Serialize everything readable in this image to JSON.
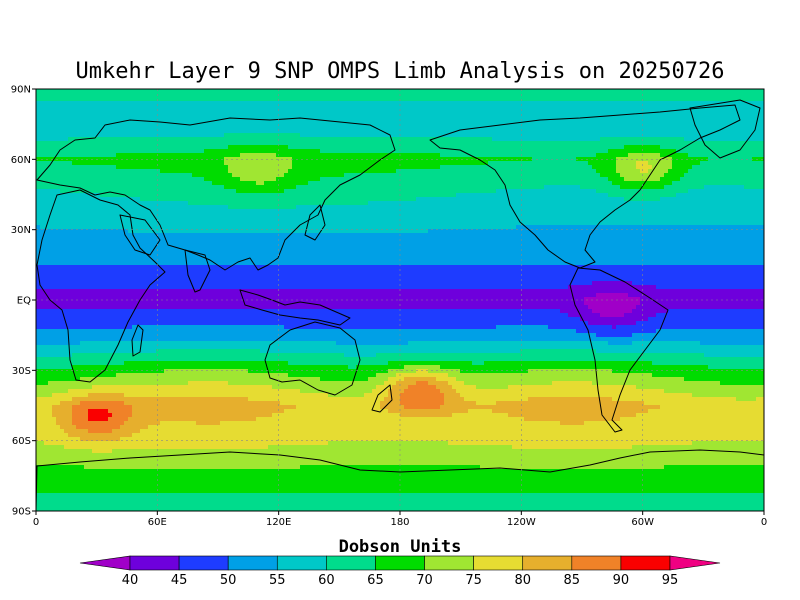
{
  "chart_data": {
    "type": "heatmap",
    "title": "Umkehr Layer 9 SNP OMPS Limb Analysis on 20250726",
    "colorbar_title": "Dobson Units",
    "colorbar_levels": [
      "40",
      "45",
      "50",
      "55",
      "60",
      "65",
      "70",
      "75",
      "80",
      "85",
      "90",
      "95"
    ],
    "colors": {
      "below_40": "#a000c8",
      "40-45": "#6e00dc",
      "45-50": "#1e3cff",
      "50-55": "#00a0e6",
      "55-60": "#00c8c8",
      "60-65": "#00dc8c",
      "65-70": "#00dc00",
      "70-75": "#a0e632",
      "75-80": "#e6dc32",
      "80-85": "#e6af2d",
      "85-90": "#f08228",
      "90-95": "#fa0000",
      "above_95": "#f00082"
    },
    "x_tick_labels": [
      "0",
      "60E",
      "120E",
      "180",
      "120W",
      "60W",
      "0"
    ],
    "y_tick_labels": [
      "90S",
      "60S",
      "30S",
      "EQ",
      "30N",
      "60N",
      "90N"
    ],
    "xlim_deg_east": [
      0,
      360
    ],
    "ylim_deg": [
      -90,
      90
    ],
    "grid": "dotted",
    "map_projection": "cylindrical equidistant",
    "coastlines": true,
    "approx_zonal_profile_DU": [
      {
        "lat": 90,
        "value": 62
      },
      {
        "lat": 75,
        "value": 56
      },
      {
        "lat": 60,
        "value": 66
      },
      {
        "lat": 45,
        "value": 60
      },
      {
        "lat": 30,
        "value": 55
      },
      {
        "lat": 15,
        "value": 50
      },
      {
        "lat": 0,
        "value": 43
      },
      {
        "lat": -15,
        "value": 52
      },
      {
        "lat": -30,
        "value": 68
      },
      {
        "lat": -45,
        "value": 80
      },
      {
        "lat": -60,
        "value": 76
      },
      {
        "lat": -75,
        "value": 68
      },
      {
        "lat": -90,
        "value": 62
      }
    ],
    "notable_extrema": [
      {
        "lon": 30,
        "lat": -50,
        "value": 92,
        "kind": "max"
      },
      {
        "lon": 190,
        "lat": -38,
        "value": 91,
        "kind": "max"
      },
      {
        "lon": 285,
        "lat": -5,
        "value": 38,
        "kind": "min"
      },
      {
        "lon": 110,
        "lat": 55,
        "value": 72,
        "kind": "max"
      },
      {
        "lon": 300,
        "lat": 55,
        "value": 77,
        "kind": "max"
      }
    ]
  }
}
